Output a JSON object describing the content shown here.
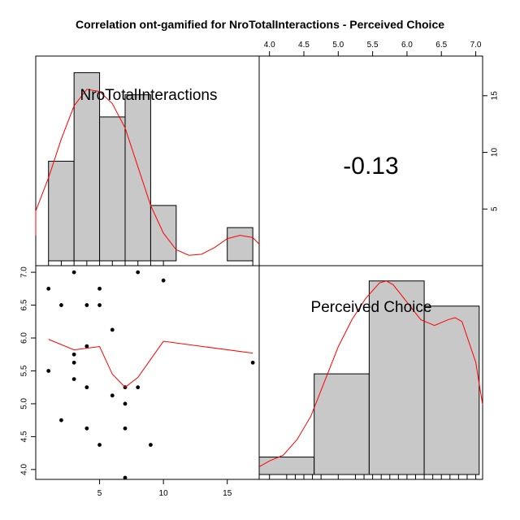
{
  "title": "Correlation ont-gamified for NroTotalInteractions - Perceived Choice",
  "colors": {
    "bar_fill": "#c8c8c8",
    "density": "#ff0000",
    "point": "#000000",
    "axis": "#000000"
  },
  "chart_data": [
    {
      "type": "bar",
      "panel": "histogram-x",
      "label": "NroTotalInteractions",
      "bins": [
        [
          1,
          3
        ],
        [
          3,
          5
        ],
        [
          5,
          7
        ],
        [
          7,
          9
        ],
        [
          9,
          11
        ],
        [
          11,
          13
        ],
        [
          13,
          15
        ],
        [
          15,
          17
        ]
      ],
      "counts": [
        9,
        17,
        13,
        15,
        5,
        0,
        0,
        3
      ],
      "rug": [
        1,
        2,
        3,
        4,
        5,
        6,
        7,
        8,
        9,
        10,
        17
      ],
      "density": [
        [
          -1.0,
          2.3
        ],
        [
          0.0,
          4.5
        ],
        [
          1.0,
          7.5
        ],
        [
          2.0,
          11.0
        ],
        [
          3.0,
          14.0
        ],
        [
          4.0,
          15.5
        ],
        [
          5.0,
          15.3
        ],
        [
          6.0,
          14.2
        ],
        [
          7.0,
          12.0
        ],
        [
          8.0,
          8.5
        ],
        [
          9.0,
          5.0
        ],
        [
          10.0,
          2.5
        ],
        [
          11.0,
          1.0
        ],
        [
          12.0,
          0.5
        ],
        [
          13.0,
          0.6
        ],
        [
          14.0,
          1.2
        ],
        [
          15.0,
          2.0
        ],
        [
          16.0,
          2.3
        ],
        [
          17.0,
          2.1
        ],
        [
          18.0,
          1.5
        ]
      ]
    },
    {
      "type": "table",
      "panel": "correlation",
      "value": "-0.13"
    },
    {
      "type": "scatter",
      "panel": "scatter",
      "x_axis": {
        "range": [
          0,
          17.5
        ],
        "ticks": [
          "5",
          "10",
          "15"
        ]
      },
      "y_axis": {
        "range": [
          3.85,
          7.1
        ],
        "ticks": [
          "4.0",
          "4.5",
          "5.0",
          "5.5",
          "6.0",
          "6.5",
          "7.0"
        ]
      },
      "points": [
        [
          1,
          6.75
        ],
        [
          1,
          5.5
        ],
        [
          2,
          6.5
        ],
        [
          2,
          4.75
        ],
        [
          3,
          7.0
        ],
        [
          3,
          5.75
        ],
        [
          3,
          5.625
        ],
        [
          3,
          5.375
        ],
        [
          4,
          6.5
        ],
        [
          4,
          5.875
        ],
        [
          4,
          5.25
        ],
        [
          4,
          4.625
        ],
        [
          5,
          6.75
        ],
        [
          5,
          6.5
        ],
        [
          5,
          4.375
        ],
        [
          6,
          6.125
        ],
        [
          6,
          5.125
        ],
        [
          7,
          5.25
        ],
        [
          7,
          5.0
        ],
        [
          7,
          4.625
        ],
        [
          7,
          3.875
        ],
        [
          8,
          7.0
        ],
        [
          8,
          5.25
        ],
        [
          9,
          4.375
        ],
        [
          10,
          6.875
        ],
        [
          17,
          5.625
        ]
      ],
      "smooth": [
        [
          1,
          5.98
        ],
        [
          3,
          5.82
        ],
        [
          5,
          5.87
        ],
        [
          6,
          5.45
        ],
        [
          7,
          5.25
        ],
        [
          8,
          5.4
        ],
        [
          10,
          5.95
        ],
        [
          17,
          5.77
        ]
      ]
    },
    {
      "type": "bar",
      "panel": "histogram-y",
      "label": "Perceived Choice",
      "bins": [
        [
          3.85,
          4.65
        ],
        [
          4.65,
          5.45
        ],
        [
          5.45,
          6.25
        ],
        [
          6.25,
          7.05
        ]
      ],
      "counts": [
        0.9,
        5.2,
        10.0,
        8.7
      ],
      "rug": [
        4.0,
        4.25,
        4.375,
        4.5,
        4.625,
        4.75,
        5.0,
        5.25,
        5.375,
        5.5,
        5.625,
        5.75,
        5.875,
        6.0,
        6.125,
        6.25,
        6.375,
        6.5,
        6.625,
        6.75,
        6.875,
        7.0
      ],
      "density": [
        [
          3.85,
          0.4
        ],
        [
          4.0,
          0.7
        ],
        [
          4.2,
          1.0
        ],
        [
          4.4,
          1.8
        ],
        [
          4.6,
          3.0
        ],
        [
          4.8,
          4.8
        ],
        [
          5.0,
          6.6
        ],
        [
          5.2,
          8.0
        ],
        [
          5.4,
          9.1
        ],
        [
          5.6,
          9.9
        ],
        [
          5.7,
          10.0
        ],
        [
          5.8,
          9.8
        ],
        [
          6.0,
          8.9
        ],
        [
          6.2,
          8.0
        ],
        [
          6.4,
          7.7
        ],
        [
          6.6,
          8.0
        ],
        [
          6.7,
          8.1
        ],
        [
          6.8,
          7.9
        ],
        [
          7.0,
          5.8
        ],
        [
          7.1,
          3.6
        ]
      ]
    }
  ],
  "axes": {
    "top": {
      "range": [
        3.85,
        7.1
      ],
      "ticks": [
        "4.0",
        "4.5",
        "5.0",
        "5.5",
        "6.0",
        "6.5",
        "7.0"
      ]
    },
    "right": {
      "range": [
        0,
        18.5
      ],
      "ticks": [
        "5",
        "10",
        "15"
      ]
    }
  }
}
